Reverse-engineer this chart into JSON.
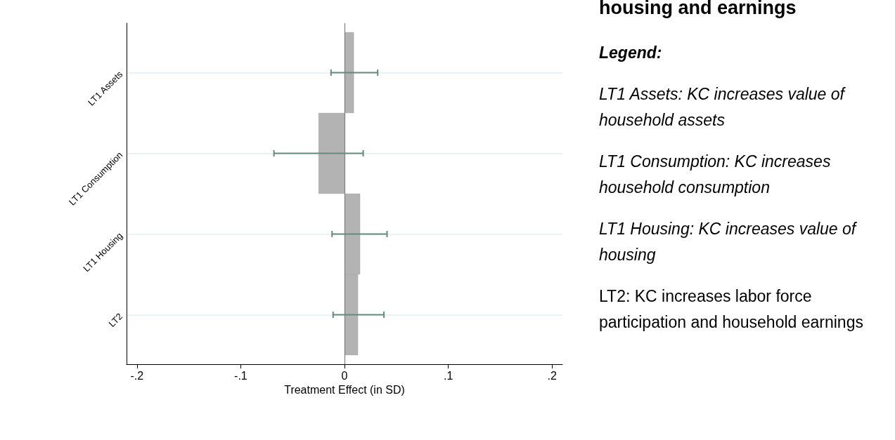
{
  "chart_data": {
    "type": "bar",
    "orientation": "horizontal",
    "title": "housing and earnings",
    "legend_title": "Legend:",
    "annotations": [
      "LT1 Assets: KC increases value of household assets",
      "LT1 Consumption: KC increases household consumption",
      "LT1 Housing: KC increases value of housing",
      "LT2: KC increases labor force participation and household earnings"
    ],
    "xlabel": "Treatment Effect (in SD)",
    "categories": [
      "LT1 Assets",
      "LT1 Consumption",
      "LT1 Housing",
      "LT2"
    ],
    "values": [
      0.009,
      -0.025,
      0.015,
      0.013
    ],
    "errors": [
      [
        -0.013,
        0.032
      ],
      [
        -0.068,
        0.018
      ],
      [
        -0.012,
        0.041
      ],
      [
        -0.011,
        0.038
      ]
    ],
    "color": "#b3b3b3",
    "xlim": [
      -0.21,
      0.21
    ],
    "xticks": [
      {
        "value": -0.2,
        "label": "-.2"
      },
      {
        "value": -0.1,
        "label": "-.1"
      },
      0,
      {
        "value": 0.1,
        "label": ".1"
      },
      {
        "value": 0.2,
        "label": ".2"
      }
    ],
    "grid": "y",
    "ref_lines": [
      {
        "axis": "x",
        "value": 0,
        "color": "#808080"
      }
    ]
  }
}
